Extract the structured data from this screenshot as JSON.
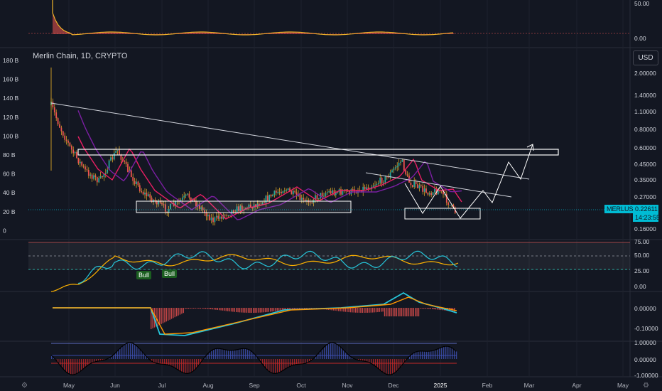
{
  "header": {
    "title": "Merlin Chain, 1D, CRYPTO",
    "currency": "USD"
  },
  "price_tags": {
    "symbol": "MERLUSD",
    "price": "0.22611",
    "timer": "14:23:55"
  },
  "badges": [
    "Bull",
    "Bull"
  ],
  "colors": {
    "bg": "#131722",
    "grid": "#2a2e39",
    "candle_up": "#26a69a",
    "candle_down": "#ef5350",
    "accent": "#00bcd4",
    "wick": "#f0b429"
  },
  "chart_data": [
    {
      "type": "area",
      "panel": "top",
      "yaxis_ticks": [
        "50.00",
        "0.00"
      ]
    },
    {
      "type": "candlestick",
      "panel": "main",
      "x_ticks": [
        "May",
        "Jun",
        "Jul",
        "Aug",
        "Sep",
        "Oct",
        "Nov",
        "Dec",
        "2025",
        "Feb",
        "Mar",
        "Apr",
        "May"
      ],
      "right_axis_ticks": [
        "2.00000",
        "1.40000",
        "1.10000",
        "0.80000",
        "0.60000",
        "0.45000",
        "0.35000",
        "0.27000",
        "0.16000"
      ],
      "left_axis_ticks": [
        "180 B",
        "160 B",
        "140 B",
        "120 B",
        "100 B",
        "80 B",
        "60 B",
        "40 B",
        "20 B",
        "0"
      ],
      "last_price": 0.22611
    },
    {
      "type": "line",
      "panel": "rsi",
      "yaxis_ticks": [
        "75.00",
        "50.00",
        "25.00",
        "0.00"
      ]
    },
    {
      "type": "line",
      "panel": "macd",
      "yaxis_ticks": [
        "0.00000",
        "-0.10000"
      ]
    },
    {
      "type": "bar",
      "panel": "osc",
      "yaxis_ticks": [
        "1.00000",
        "0.00000",
        "-1.00000"
      ]
    }
  ]
}
